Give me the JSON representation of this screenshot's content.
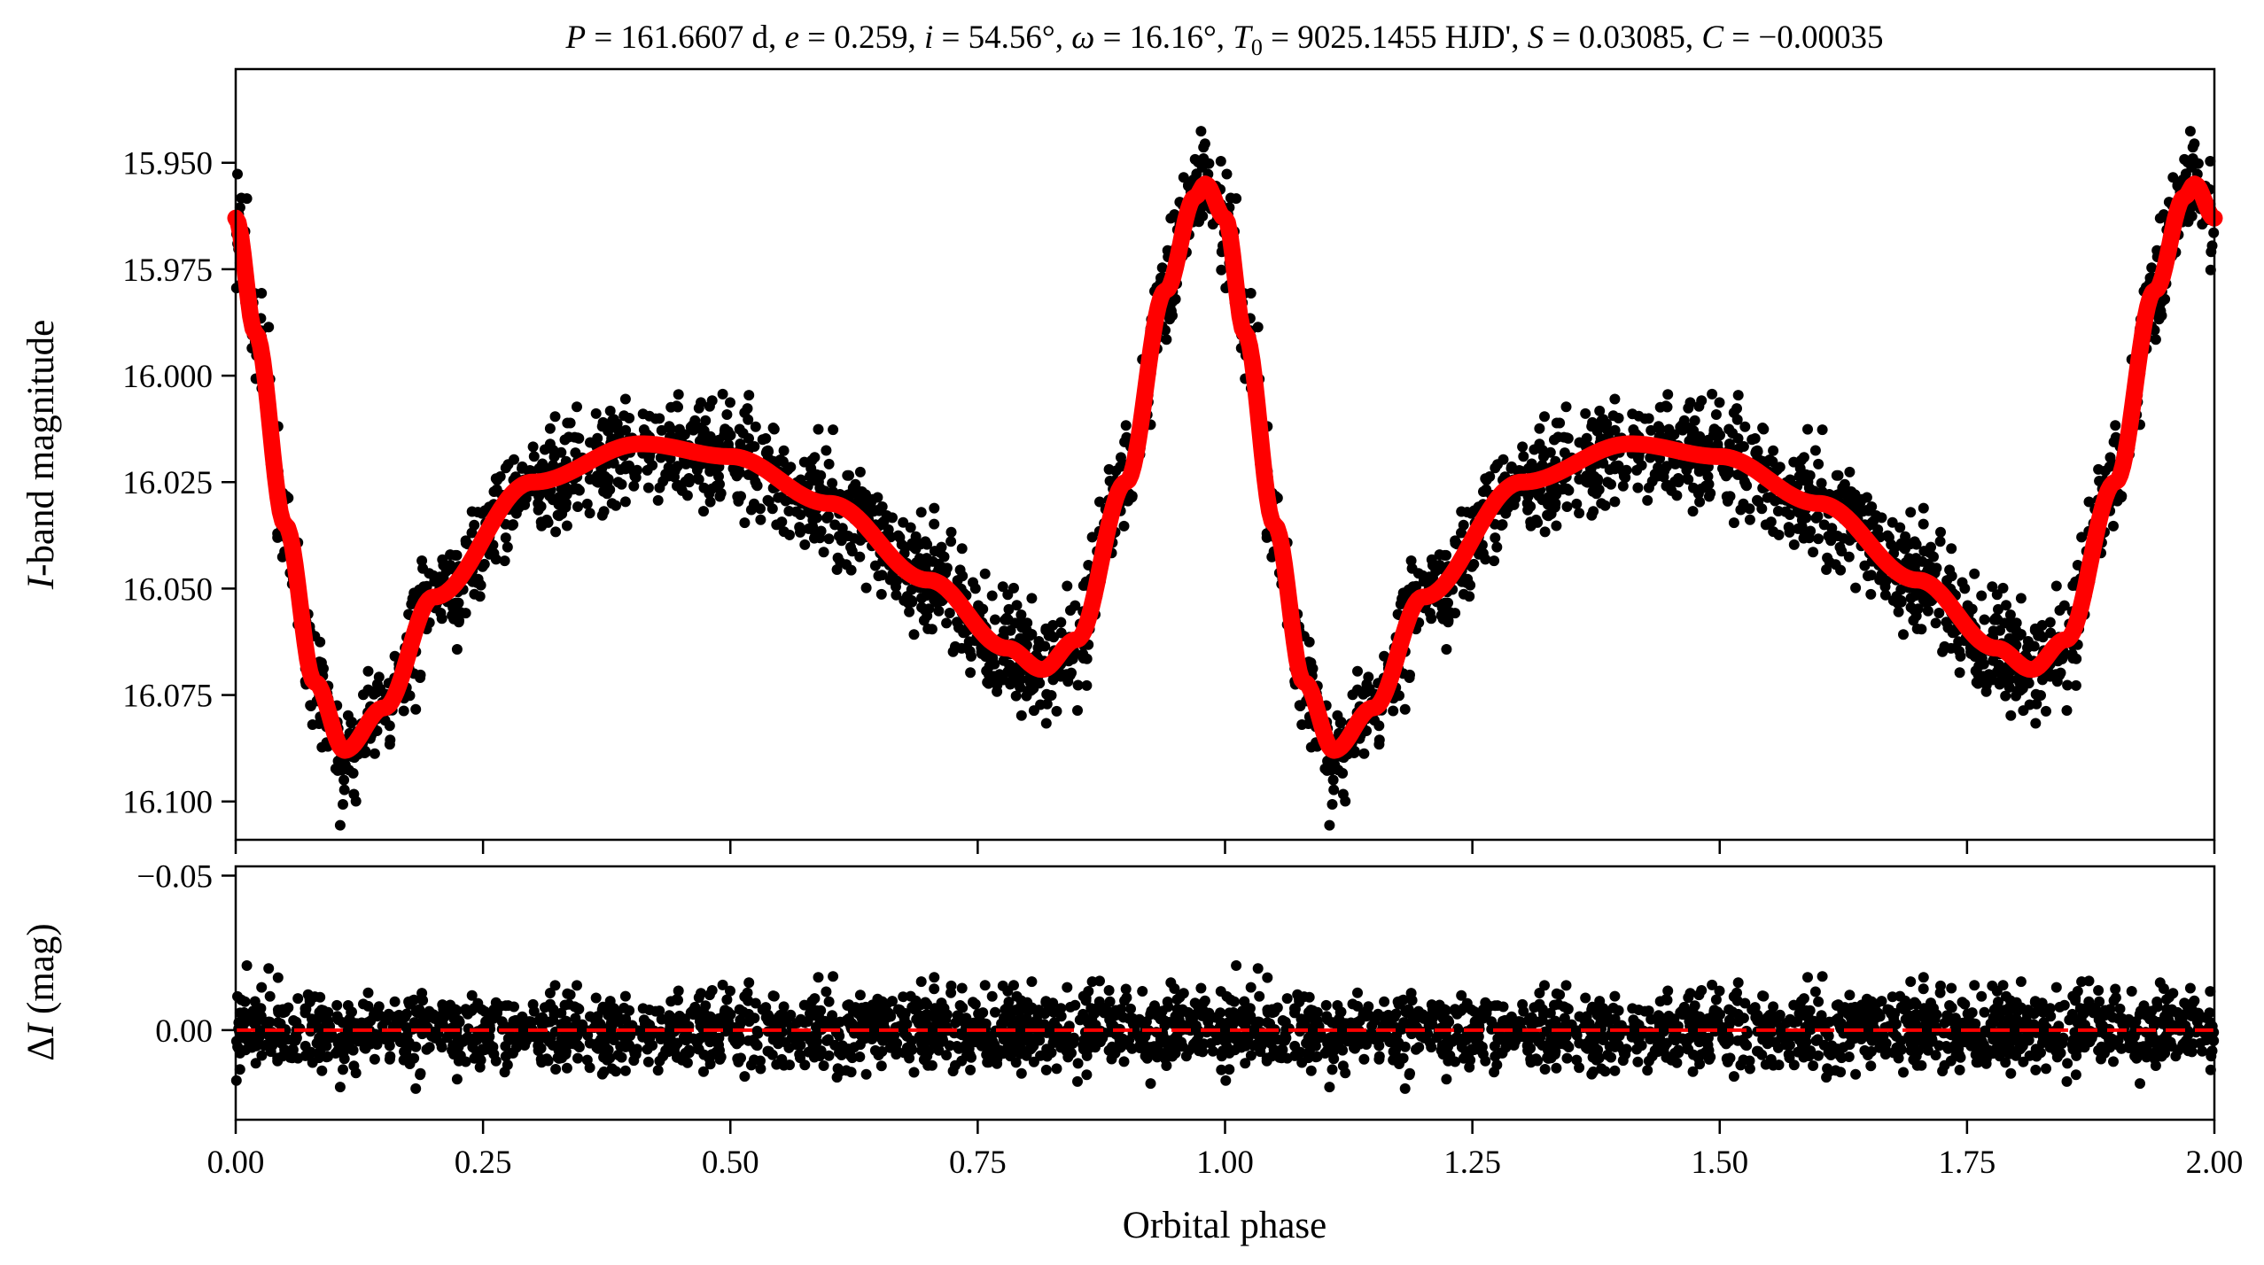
{
  "figure": {
    "title_parts": {
      "p_sym": "P",
      "p_val": " = 161.6607 d, ",
      "e_sym": "e",
      "e_val": " = 0.259, ",
      "i_sym": "i",
      "i_val": " = 54.56°, ",
      "w_sym": "ω",
      "w_val": " = 16.16°, ",
      "t_sym": "T",
      "t_sub": "0",
      "t_val": " = 9025.1455 HJD', ",
      "s_sym": "S",
      "s_val": " = 0.03085, ",
      "c_sym": "C",
      "c_val": " = −0.00035"
    }
  },
  "chart_data": [
    {
      "type": "scatter",
      "panel": "light curve",
      "xlabel": "Orbital phase",
      "ylabel_italic": "I",
      "ylabel_rest": "-band magnitude",
      "xlim": [
        0.0,
        2.0
      ],
      "ylim": [
        16.109,
        15.928
      ],
      "y_inverted": true,
      "x_ticks": [
        0.0,
        0.25,
        0.5,
        0.75,
        1.0,
        1.25,
        1.5,
        1.75,
        2.0
      ],
      "y_ticks": [
        15.95,
        15.975,
        16.0,
        16.025,
        16.05,
        16.075,
        16.1
      ],
      "y_tick_labels": [
        "15.950",
        "15.975",
        "16.000",
        "16.025",
        "16.050",
        "16.075",
        "16.100"
      ],
      "series": [
        {
          "marker": "points",
          "color": "#000000",
          "model_x": [
            0.0,
            0.02,
            0.05,
            0.08,
            0.11,
            0.15,
            0.2,
            0.3,
            0.41,
            0.5,
            0.6,
            0.7,
            0.78,
            0.815,
            0.85,
            0.9,
            0.94,
            0.97,
            0.98,
            1.0
          ],
          "n_per_cycle": 1500,
          "scatter_sigma": 0.008
        },
        {
          "marker": "line",
          "color": "#ff0000",
          "x": [
            0.0,
            0.02,
            0.05,
            0.08,
            0.11,
            0.15,
            0.2,
            0.3,
            0.41,
            0.5,
            0.6,
            0.7,
            0.78,
            0.815,
            0.85,
            0.9,
            0.94,
            0.97,
            0.98,
            1.0,
            1.02,
            1.05,
            1.08,
            1.11,
            1.15,
            1.2,
            1.3,
            1.41,
            1.5,
            1.6,
            1.7,
            1.78,
            1.815,
            1.85,
            1.9,
            1.94,
            1.97,
            1.98,
            2.0
          ],
          "y": [
            15.963,
            15.99,
            16.035,
            16.072,
            16.088,
            16.078,
            16.052,
            16.025,
            16.016,
            16.019,
            16.03,
            16.048,
            16.064,
            16.069,
            16.062,
            16.025,
            15.98,
            15.958,
            15.955,
            15.963,
            15.99,
            16.035,
            16.072,
            16.088,
            16.078,
            16.052,
            16.025,
            16.016,
            16.019,
            16.03,
            16.048,
            16.064,
            16.069,
            16.062,
            16.025,
            15.98,
            15.958,
            15.955,
            15.963
          ]
        }
      ]
    },
    {
      "type": "scatter",
      "panel": "residuals",
      "xlabel": "Orbital phase",
      "ylabel_prefix": "Δ",
      "ylabel_italic": "I",
      "ylabel_rest": " (mag)",
      "xlim": [
        0.0,
        2.0
      ],
      "ylim": [
        0.029,
        -0.053
      ],
      "y_inverted": true,
      "x_ticks": [
        0.0,
        0.25,
        0.5,
        0.75,
        1.0,
        1.25,
        1.5,
        1.75,
        2.0
      ],
      "x_tick_labels": [
        "0.00",
        "0.25",
        "0.50",
        "0.75",
        "1.00",
        "1.25",
        "1.50",
        "1.75",
        "2.00"
      ],
      "y_ticks": [
        -0.05,
        0.0
      ],
      "y_tick_labels": [
        "−0.05",
        "0.00"
      ],
      "series": [
        {
          "marker": "points",
          "color": "#000000",
          "mean": 0.0,
          "scatter_sigma": 0.008
        },
        {
          "marker": "dashed line",
          "color": "#ff0000",
          "y": 0.0
        }
      ]
    }
  ]
}
